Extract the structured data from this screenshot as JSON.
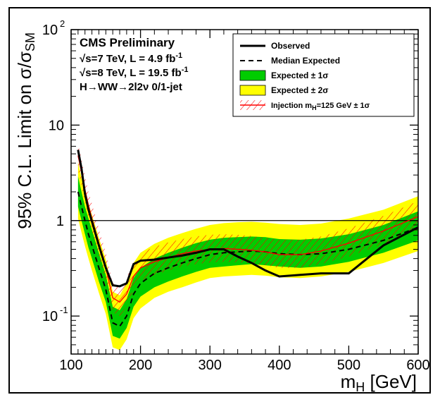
{
  "chart": {
    "type": "line-band-logy",
    "x": {
      "label": "m_H [GeV]",
      "label_fontsize": 26,
      "min": 100,
      "max": 600,
      "ticks_major": [
        100,
        200,
        300,
        400,
        500,
        600
      ],
      "ticks_minor_step_below200": 10,
      "ticks_minor_step_above200": 20
    },
    "y": {
      "label": "95% C.L. Limit on σ/σ_SM",
      "label_fontsize": 26,
      "min": 0.04,
      "max": 100,
      "scale": "log",
      "majors": [
        0.1,
        1,
        10,
        100
      ],
      "tick_labels": [
        "10^{-1}",
        "1",
        "10",
        "10^{2}"
      ]
    },
    "colors": {
      "band2sigma": "#ffff00",
      "band1sigma": "#00cc00",
      "observed": "#000000",
      "expected": "#000000",
      "injection": "#ff0000",
      "injection_hatch": "#ff0000",
      "reference_line": "#000000",
      "background": "#ffffff",
      "frame": "#000000"
    },
    "line_widths": {
      "observed": 3.0,
      "expected": 2.0,
      "injection": 1.4,
      "frame": 1.5,
      "ref": 1.2
    },
    "dash": {
      "expected": "7,5"
    },
    "reference_y": 1.0,
    "mH": [
      110,
      115,
      120,
      125,
      130,
      140,
      150,
      160,
      170,
      180,
      190,
      200,
      220,
      240,
      260,
      280,
      300,
      320,
      340,
      360,
      380,
      400,
      430,
      460,
      500,
      550,
      600
    ],
    "expected": [
      2.0,
      1.4,
      1.0,
      0.72,
      0.55,
      0.32,
      0.19,
      0.085,
      0.078,
      0.1,
      0.17,
      0.22,
      0.28,
      0.32,
      0.36,
      0.4,
      0.44,
      0.46,
      0.47,
      0.48,
      0.47,
      0.45,
      0.44,
      0.45,
      0.5,
      0.62,
      0.85
    ],
    "plus1": [
      2.9,
      2.0,
      1.4,
      1.05,
      0.8,
      0.46,
      0.27,
      0.125,
      0.115,
      0.15,
      0.25,
      0.32,
      0.4,
      0.46,
      0.52,
      0.58,
      0.63,
      0.66,
      0.67,
      0.68,
      0.67,
      0.64,
      0.63,
      0.65,
      0.72,
      0.9,
      1.25
    ],
    "minus1": [
      1.4,
      1.0,
      0.72,
      0.52,
      0.4,
      0.23,
      0.14,
      0.062,
      0.058,
      0.075,
      0.125,
      0.16,
      0.2,
      0.23,
      0.26,
      0.29,
      0.32,
      0.33,
      0.34,
      0.35,
      0.34,
      0.33,
      0.32,
      0.33,
      0.37,
      0.46,
      0.62
    ],
    "plus2": [
      4.1,
      2.8,
      2.0,
      1.5,
      1.15,
      0.66,
      0.39,
      0.18,
      0.165,
      0.22,
      0.36,
      0.46,
      0.57,
      0.66,
      0.74,
      0.82,
      0.9,
      0.94,
      0.96,
      0.97,
      0.95,
      0.92,
      0.9,
      0.93,
      1.05,
      1.3,
      1.8
    ],
    "minus2": [
      1.05,
      0.75,
      0.54,
      0.4,
      0.3,
      0.175,
      0.105,
      0.047,
      0.044,
      0.057,
      0.095,
      0.12,
      0.155,
      0.18,
      0.2,
      0.225,
      0.25,
      0.26,
      0.265,
      0.27,
      0.265,
      0.255,
      0.25,
      0.26,
      0.29,
      0.36,
      0.48
    ],
    "observed": [
      5.5,
      3.5,
      1.9,
      1.3,
      0.98,
      0.55,
      0.32,
      0.21,
      0.205,
      0.22,
      0.35,
      0.38,
      0.39,
      0.41,
      0.43,
      0.46,
      0.5,
      0.5,
      0.42,
      0.36,
      0.3,
      0.26,
      0.27,
      0.28,
      0.28,
      0.55,
      0.85
    ],
    "injection": [
      4.8,
      3.2,
      2.1,
      1.45,
      1.05,
      0.58,
      0.32,
      0.155,
      0.14,
      0.17,
      0.26,
      0.32,
      0.37,
      0.41,
      0.45,
      0.48,
      0.5,
      0.51,
      0.5,
      0.49,
      0.47,
      0.44,
      0.44,
      0.48,
      0.58,
      0.78,
      1.1
    ],
    "injection_plus": [
      6.5,
      4.4,
      2.9,
      2.0,
      1.5,
      0.82,
      0.46,
      0.22,
      0.2,
      0.25,
      0.37,
      0.46,
      0.53,
      0.59,
      0.64,
      0.68,
      0.71,
      0.72,
      0.71,
      0.69,
      0.66,
      0.63,
      0.63,
      0.68,
      0.83,
      1.12,
      1.6
    ],
    "injection_minus": [
      3.4,
      2.3,
      1.5,
      1.05,
      0.76,
      0.42,
      0.23,
      0.11,
      0.1,
      0.125,
      0.19,
      0.235,
      0.27,
      0.3,
      0.33,
      0.35,
      0.365,
      0.37,
      0.365,
      0.355,
      0.34,
      0.32,
      0.32,
      0.35,
      0.42,
      0.57,
      0.8
    ]
  },
  "annotations": {
    "title": "CMS Preliminary",
    "line2a": "√s=7 TeV, L = 4.9 fb",
    "line2b": "-1",
    "line3a": "√s=8 TeV, L = 19.5 fb",
    "line3b": "-1",
    "line4": "H→WW→2l2ν 0/1-jet",
    "fontsize_title": 17,
    "fontsize_lines": 15,
    "color": "#000000"
  },
  "legend": {
    "items": [
      {
        "key": "observed",
        "label": "Observed"
      },
      {
        "key": "expected",
        "label": "Median Expected"
      },
      {
        "key": "band1",
        "label": "Expected ± 1σ"
      },
      {
        "key": "band2",
        "label": "Expected ± 2σ"
      },
      {
        "key": "injection",
        "label": "Injection m_H=125 GeV ± 1σ"
      }
    ],
    "fontsize": 12,
    "fontsize_small": 11,
    "border_color": "#000000",
    "fill": "#ffffff"
  }
}
